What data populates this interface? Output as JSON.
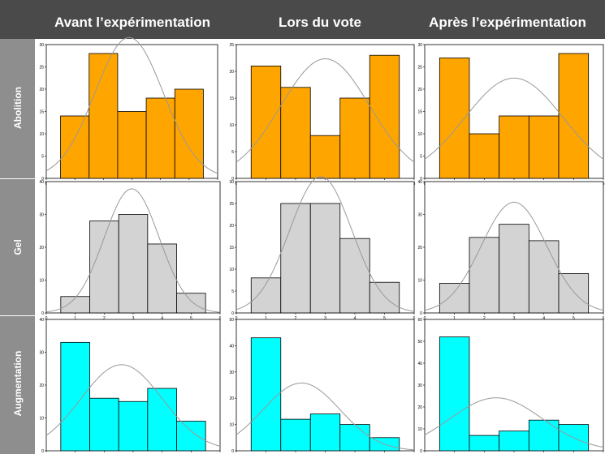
{
  "column_titles": [
    "Avant l’expérimentation",
    "Lors du vote",
    "Après l’expérimentation"
  ],
  "row_titles": [
    "Abolition",
    "Gel",
    "Augmentation"
  ],
  "colors": {
    "Abolition": "#ffa500",
    "Gel": "#d3d3d3",
    "Augmentation": "#00ffff",
    "header_bg": "#4a4a4a",
    "side_bg": "#8e8e8e",
    "curve": "#999999"
  },
  "chart_data": [
    {
      "type": "bar",
      "row": "Abolition",
      "column": "Avant l’expérimentation",
      "categories": [
        1,
        2,
        3,
        4,
        5
      ],
      "values": [
        14,
        28,
        15,
        18,
        20
      ],
      "xlim": [
        0,
        6
      ],
      "ylim": [
        0,
        30
      ],
      "yticks": [
        0,
        5,
        10,
        15,
        20,
        25,
        30
      ],
      "xticks": [
        0,
        1,
        2,
        3,
        4,
        5,
        6
      ],
      "normal_curve": {
        "mean": 2.9,
        "sd": 1.2
      }
    },
    {
      "type": "bar",
      "row": "Abolition",
      "column": "Lors du vote",
      "categories": [
        1,
        2,
        3,
        4,
        5
      ],
      "values": [
        21,
        17,
        8,
        15,
        23
      ],
      "xlim": [
        0,
        6
      ],
      "ylim": [
        0,
        25
      ],
      "yticks": [
        0,
        5,
        10,
        15,
        20,
        25
      ],
      "xticks": [
        0,
        1,
        2,
        3,
        4,
        5,
        6
      ],
      "normal_curve": {
        "mean": 3.0,
        "sd": 1.5
      }
    },
    {
      "type": "bar",
      "row": "Abolition",
      "column": "Après l’expérimentation",
      "categories": [
        1,
        2,
        3,
        4,
        5
      ],
      "values": [
        27,
        10,
        14,
        14,
        28
      ],
      "xlim": [
        0,
        6
      ],
      "ylim": [
        0,
        30
      ],
      "yticks": [
        0,
        5,
        10,
        15,
        20,
        25,
        30
      ],
      "xticks": [
        0,
        1,
        2,
        3,
        4,
        5,
        6
      ],
      "normal_curve": {
        "mean": 3.0,
        "sd": 1.65
      }
    },
    {
      "type": "bar",
      "row": "Gel",
      "column": "Avant l’expérimentation",
      "categories": [
        1,
        2,
        3,
        4,
        5
      ],
      "values": [
        5,
        28,
        30,
        21,
        6
      ],
      "xlim": [
        0,
        6
      ],
      "ylim": [
        0,
        40
      ],
      "yticks": [
        0,
        10,
        20,
        30,
        40
      ],
      "xticks": [
        0,
        1,
        2,
        3,
        4,
        5,
        6
      ],
      "normal_curve": {
        "mean": 2.95,
        "sd": 0.95
      }
    },
    {
      "type": "bar",
      "row": "Gel",
      "column": "Lors du vote",
      "categories": [
        1,
        2,
        3,
        4,
        5
      ],
      "values": [
        8,
        25,
        25,
        17,
        7
      ],
      "xlim": [
        0,
        6
      ],
      "ylim": [
        0,
        30
      ],
      "yticks": [
        0,
        5,
        10,
        15,
        20,
        25,
        30
      ],
      "xticks": [
        0,
        1,
        2,
        3,
        4,
        5,
        6
      ],
      "normal_curve": {
        "mean": 2.85,
        "sd": 1.05
      }
    },
    {
      "type": "bar",
      "row": "Gel",
      "column": "Après l’expérimentation",
      "categories": [
        1,
        2,
        3,
        4,
        5
      ],
      "values": [
        9,
        23,
        27,
        22,
        12
      ],
      "xlim": [
        0,
        6
      ],
      "ylim": [
        0,
        40
      ],
      "yticks": [
        0,
        10,
        20,
        30,
        40
      ],
      "xticks": [
        0,
        1,
        2,
        3,
        4,
        5,
        6
      ],
      "normal_curve": {
        "mean": 3.0,
        "sd": 1.1
      }
    },
    {
      "type": "bar",
      "row": "Augmentation",
      "column": "Avant l’expérimentation",
      "categories": [
        1,
        2,
        3,
        4,
        5
      ],
      "values": [
        33,
        16,
        15,
        19,
        9
      ],
      "xlim": [
        0,
        6
      ],
      "ylim": [
        0,
        40
      ],
      "yticks": [
        0,
        10,
        20,
        30,
        40
      ],
      "xticks": [
        0,
        1,
        2,
        3,
        4,
        5,
        6
      ],
      "normal_curve": {
        "mean": 2.6,
        "sd": 1.4
      }
    },
    {
      "type": "bar",
      "row": "Augmentation",
      "column": "Lors du vote",
      "categories": [
        1,
        2,
        3,
        4,
        5
      ],
      "values": [
        43,
        12,
        14,
        10,
        5
      ],
      "xlim": [
        0,
        6
      ],
      "ylim": [
        0,
        50
      ],
      "yticks": [
        0,
        10,
        20,
        30,
        40,
        50
      ],
      "xticks": [
        0,
        1,
        2,
        3,
        4,
        5,
        6
      ],
      "normal_curve": {
        "mean": 2.2,
        "sd": 1.3
      }
    },
    {
      "type": "bar",
      "row": "Augmentation",
      "column": "Après l’expérimentation",
      "categories": [
        1,
        2,
        3,
        4,
        5
      ],
      "values": [
        52,
        7,
        9,
        14,
        12
      ],
      "xlim": [
        0,
        6
      ],
      "ylim": [
        0,
        60
      ],
      "yticks": [
        0,
        10,
        20,
        30,
        40,
        50,
        60
      ],
      "xticks": [
        0,
        1,
        2,
        3,
        4,
        5,
        6
      ],
      "normal_curve": {
        "mean": 2.4,
        "sd": 1.55
      }
    }
  ]
}
